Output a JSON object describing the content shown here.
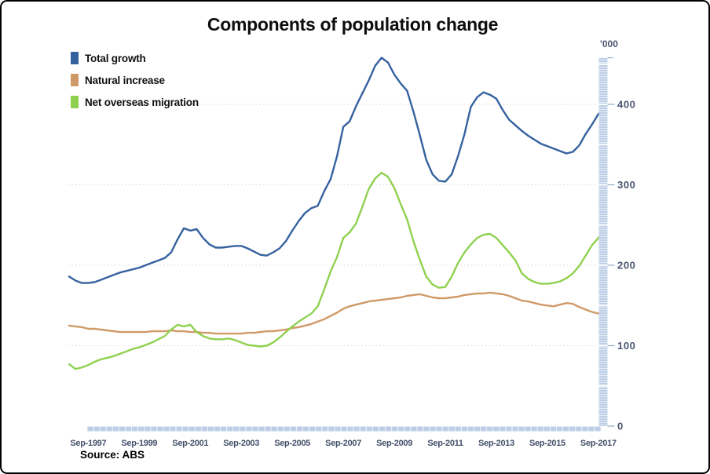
{
  "title": "Components of population change",
  "axis_unit_label": "'000",
  "source": "Source: ABS",
  "legend": [
    {
      "label": "Total growth",
      "color": "#35629f"
    },
    {
      "label": "Natural increase",
      "color": "#cf9a67"
    },
    {
      "label": "Net overseas migration",
      "color": "#8fd14f"
    }
  ],
  "colors": {
    "total_growth_line": "#35629f",
    "natural_increase_line": "#cf9a67",
    "net_overseas_migration_line": "#8fd14f",
    "axis_band": "#bdcfe7",
    "gridline": "#e3d3d3",
    "tick_text": "#4a566e"
  },
  "chart_data": {
    "type": "line",
    "frequency": "quarterly",
    "x_start": "Dec-1996",
    "x_end": "Dec-2017",
    "x_tick_labels": [
      "Sep-1997",
      "Sep-1999",
      "Sep-2001",
      "Sep-2003",
      "Sep-2005",
      "Sep-2007",
      "Sep-2009",
      "Sep-2011",
      "Sep-2013",
      "Sep-2015",
      "Sep-2017"
    ],
    "x_tick_indices": [
      3,
      11,
      19,
      27,
      35,
      43,
      51,
      59,
      67,
      75,
      83
    ],
    "y_ticks": [
      0,
      100,
      200,
      300,
      400
    ],
    "ylim": [
      0,
      458
    ],
    "unit": "'000",
    "grid": "horizontal-dotted",
    "legend_position": "top-left",
    "series": [
      {
        "name": "Total growth",
        "color": "#35629f",
        "values": [
          186,
          181,
          178,
          178,
          179,
          182,
          185,
          188,
          191,
          193,
          195,
          197,
          200,
          203,
          206,
          209,
          216,
          232,
          246,
          243,
          245,
          234,
          226,
          222,
          222,
          223,
          224,
          224,
          221,
          217,
          213,
          212,
          216,
          221,
          230,
          243,
          255,
          265,
          271,
          274,
          292,
          307,
          335,
          372,
          379,
          398,
          414,
          430,
          448,
          458,
          452,
          437,
          426,
          417,
          391,
          362,
          331,
          313,
          305,
          304,
          313,
          336,
          363,
          397,
          409,
          415,
          412,
          407,
          393,
          381,
          374,
          367,
          361,
          356,
          351,
          348,
          345,
          342,
          339,
          341,
          349,
          363,
          375,
          388,
          396
        ]
      },
      {
        "name": "Natural increase",
        "color": "#cf9a67",
        "values": [
          125,
          124,
          123,
          121,
          121,
          120,
          119,
          118,
          117,
          117,
          117,
          117,
          117,
          118,
          118,
          118,
          119,
          118,
          118,
          117,
          117,
          116,
          116,
          115,
          115,
          115,
          115,
          115,
          116,
          116,
          117,
          118,
          118,
          119,
          120,
          122,
          123,
          125,
          127,
          130,
          133,
          137,
          141,
          146,
          149,
          151,
          153,
          155,
          156,
          157,
          158,
          159,
          160,
          162,
          163,
          164,
          162,
          160,
          159,
          159,
          160,
          161,
          163,
          164,
          165,
          165,
          166,
          165,
          164,
          162,
          159,
          156,
          155,
          153,
          151,
          150,
          149,
          151,
          153,
          152,
          148,
          145,
          142,
          140,
          144
        ]
      },
      {
        "name": "Net overseas migration",
        "color": "#8fd14f",
        "values": [
          77,
          71,
          73,
          76,
          80,
          83,
          85,
          87,
          90,
          93,
          96,
          98,
          101,
          104,
          108,
          112,
          120,
          126,
          124,
          126,
          117,
          112,
          109,
          108,
          108,
          109,
          107,
          104,
          101,
          100,
          99,
          100,
          104,
          110,
          117,
          124,
          130,
          135,
          140,
          149,
          170,
          192,
          210,
          234,
          241,
          252,
          273,
          295,
          308,
          315,
          310,
          296,
          276,
          257,
          230,
          207,
          186,
          176,
          172,
          173,
          186,
          203,
          216,
          226,
          234,
          238,
          239,
          234,
          225,
          216,
          206,
          190,
          183,
          179,
          177,
          177,
          178,
          180,
          184,
          190,
          199,
          212,
          225,
          234,
          248
        ]
      }
    ]
  }
}
